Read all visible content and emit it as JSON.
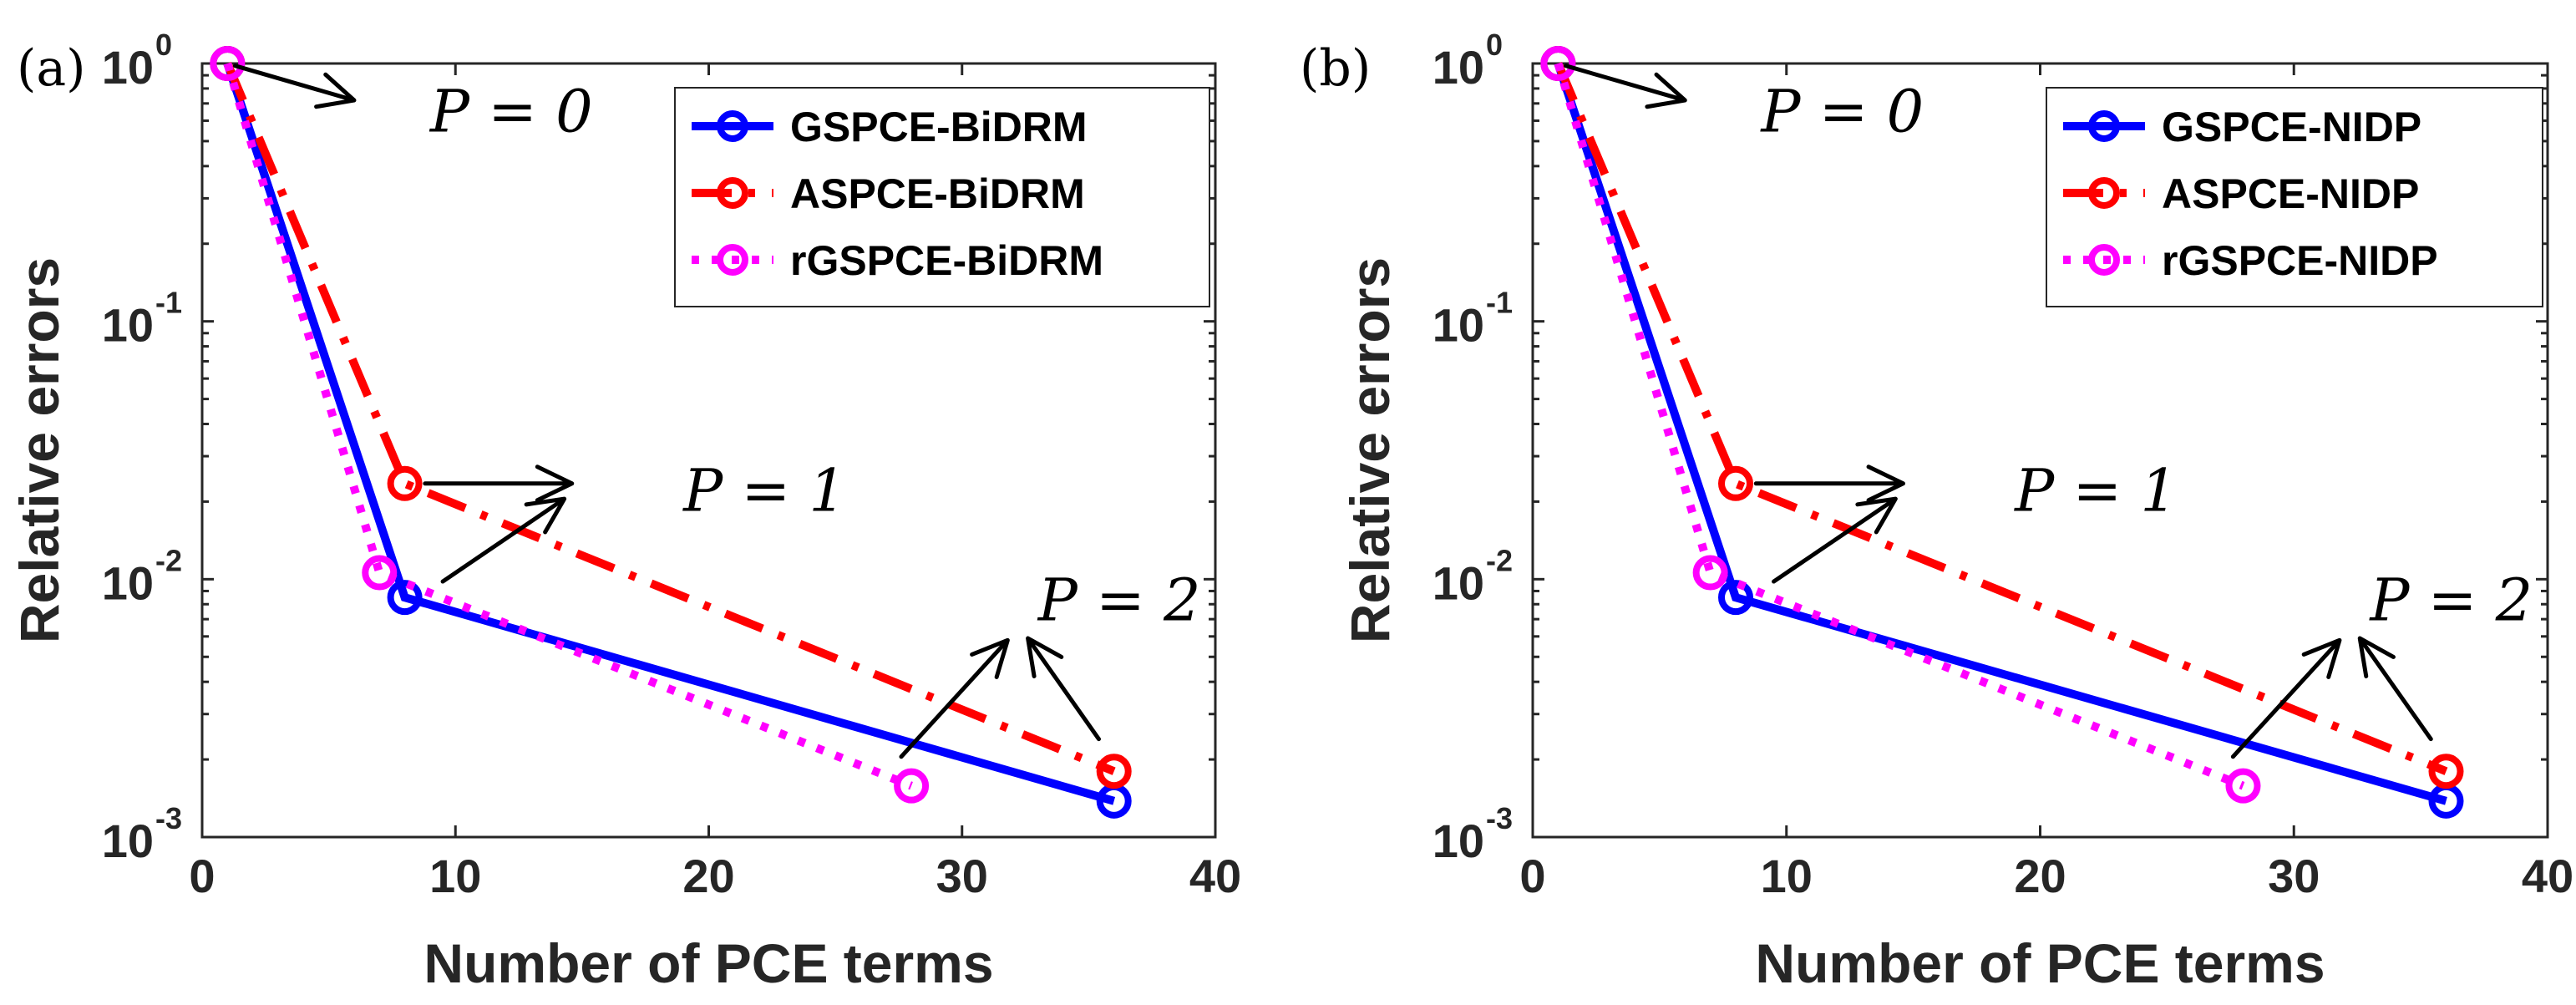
{
  "chart_data": [
    {
      "type": "line",
      "panel_label": "(a)",
      "xlabel": "Number of PCE terms",
      "ylabel": "Relative errors",
      "xlim": [
        0,
        40
      ],
      "ylim": [
        0.001,
        1
      ],
      "yscale": "log",
      "xticks": [
        0,
        10,
        20,
        30,
        40
      ],
      "yticks": [
        {
          "base": "10",
          "exp": "0"
        },
        {
          "base": "10",
          "exp": "-1"
        },
        {
          "base": "10",
          "exp": "-2"
        },
        {
          "base": "10",
          "exp": "-3"
        }
      ],
      "grid": false,
      "legend_position": "top-right",
      "series": [
        {
          "name": "GSPCE-BiDRM",
          "color": "#0000ff",
          "style": "solid",
          "x": [
            1,
            8,
            36
          ],
          "y": [
            1.0,
            0.0085,
            0.00138
          ]
        },
        {
          "name": "ASPCE-BiDRM",
          "color": "#ff0000",
          "style": "dashdot",
          "x": [
            1,
            8,
            36
          ],
          "y": [
            1.0,
            0.0235,
            0.0018
          ]
        },
        {
          "name": "rGSPCE-BiDRM",
          "color": "#ff00ff",
          "style": "dotted",
          "x": [
            1,
            7,
            28
          ],
          "y": [
            1.0,
            0.0106,
            0.00158
          ]
        }
      ],
      "annotations": [
        {
          "text": "P = 0",
          "x": 9,
          "y": 0.65
        },
        {
          "text": "P = 1",
          "x": 19,
          "y": 0.022
        },
        {
          "text": "P = 2",
          "x": 33,
          "y": 0.0083
        }
      ]
    },
    {
      "type": "line",
      "panel_label": "(b)",
      "xlabel": "Number of PCE terms",
      "ylabel": "Relative errors",
      "xlim": [
        0,
        40
      ],
      "ylim": [
        0.001,
        1
      ],
      "yscale": "log",
      "xticks": [
        0,
        10,
        20,
        30,
        40
      ],
      "yticks": [
        {
          "base": "10",
          "exp": "0"
        },
        {
          "base": "10",
          "exp": "-1"
        },
        {
          "base": "10",
          "exp": "-2"
        },
        {
          "base": "10",
          "exp": "-3"
        }
      ],
      "grid": false,
      "legend_position": "top-right",
      "series": [
        {
          "name": "GSPCE-NIDP",
          "color": "#0000ff",
          "style": "solid",
          "x": [
            1,
            8,
            36
          ],
          "y": [
            1.0,
            0.0085,
            0.00138
          ]
        },
        {
          "name": "ASPCE-NIDP",
          "color": "#ff0000",
          "style": "dashdot",
          "x": [
            1,
            8,
            36
          ],
          "y": [
            1.0,
            0.0235,
            0.0018
          ]
        },
        {
          "name": "rGSPCE-NIDP",
          "color": "#ff00ff",
          "style": "dotted",
          "x": [
            1,
            7,
            28
          ],
          "y": [
            1.0,
            0.0106,
            0.00158
          ]
        }
      ],
      "annotations": [
        {
          "text": "P = 0",
          "x": 9,
          "y": 0.65
        },
        {
          "text": "P = 1",
          "x": 19,
          "y": 0.022
        },
        {
          "text": "P = 2",
          "x": 33,
          "y": 0.0083
        }
      ]
    }
  ]
}
